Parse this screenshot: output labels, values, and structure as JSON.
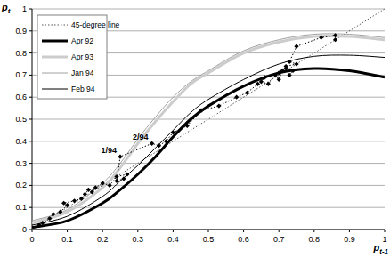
{
  "chart_data": {
    "type": "line",
    "x_label": "pt-1",
    "y_label": "pt",
    "xlim": [
      0,
      1
    ],
    "ylim": [
      0,
      1
    ],
    "xticks": [
      0,
      0.1,
      0.2,
      0.3,
      0.4,
      0.5,
      0.6,
      0.7,
      0.8,
      0.9,
      1
    ],
    "yticks": [
      0,
      0.1,
      0.2,
      0.3,
      0.4,
      0.5,
      0.6,
      0.7,
      0.8,
      0.9,
      1
    ],
    "grid": true,
    "legend": "upper left",
    "series": [
      {
        "name": "45-degree line",
        "type": "line",
        "line_style": "dotted",
        "color": "#555555",
        "x": [
          0,
          1
        ],
        "values": [
          0,
          1
        ]
      },
      {
        "name": "Apr 92",
        "type": "line",
        "line_style": "thick",
        "color": "#000000",
        "x": [
          0,
          0.1,
          0.2,
          0.25,
          0.3,
          0.35,
          0.4,
          0.45,
          0.5,
          0.6,
          0.7,
          0.8,
          0.9,
          1
        ],
        "values": [
          0.01,
          0.04,
          0.12,
          0.18,
          0.25,
          0.33,
          0.42,
          0.5,
          0.56,
          0.65,
          0.71,
          0.73,
          0.72,
          0.69
        ]
      },
      {
        "name": "Apr 93",
        "type": "line",
        "line_style": "thick",
        "color": "#cccccc",
        "x": [
          0,
          0.1,
          0.2,
          0.25,
          0.3,
          0.35,
          0.4,
          0.45,
          0.5,
          0.6,
          0.7,
          0.8,
          0.9,
          1
        ],
        "values": [
          0.03,
          0.08,
          0.19,
          0.28,
          0.39,
          0.49,
          0.58,
          0.66,
          0.71,
          0.8,
          0.85,
          0.875,
          0.875,
          0.86
        ]
      },
      {
        "name": "Jan 94",
        "type": "line",
        "line_style": "solid",
        "color": "#a0a0a0",
        "x": [
          0,
          0.1,
          0.2,
          0.25,
          0.3,
          0.35,
          0.4,
          0.45,
          0.5,
          0.6,
          0.7,
          0.8,
          0.9,
          1
        ],
        "values": [
          0.04,
          0.09,
          0.21,
          0.3,
          0.41,
          0.51,
          0.6,
          0.67,
          0.72,
          0.81,
          0.86,
          0.885,
          0.885,
          0.87
        ]
      },
      {
        "name": "Feb 94",
        "type": "line",
        "line_style": "solid",
        "color": "#000000",
        "x": [
          0,
          0.1,
          0.2,
          0.25,
          0.3,
          0.35,
          0.4,
          0.45,
          0.5,
          0.6,
          0.7,
          0.8,
          0.9,
          1
        ],
        "values": [
          0.02,
          0.06,
          0.15,
          0.22,
          0.29,
          0.37,
          0.45,
          0.53,
          0.59,
          0.68,
          0.75,
          0.785,
          0.79,
          0.78
        ]
      },
      {
        "type": "scatter",
        "marker": "diamond",
        "line_style": "dotted",
        "color": "#000000",
        "x": [
          0.02,
          0.03,
          0.05,
          0.06,
          0.08,
          0.1,
          0.09,
          0.12,
          0.14,
          0.15,
          0.16,
          0.17,
          0.18,
          0.2,
          0.22,
          0.24,
          0.27,
          0.26,
          0.24,
          0.25,
          0.34,
          0.36,
          0.38,
          0.4,
          0.44,
          0.48,
          0.53,
          0.58,
          0.61,
          0.64,
          0.66,
          0.65,
          0.67,
          0.69,
          0.7,
          0.71,
          0.7,
          0.72,
          0.73,
          0.74,
          0.72,
          0.75,
          0.73,
          0.75,
          0.82,
          0.86,
          0.86
        ],
        "values": [
          0.02,
          0.03,
          0.05,
          0.07,
          0.08,
          0.11,
          0.12,
          0.13,
          0.14,
          0.16,
          0.18,
          0.17,
          0.19,
          0.21,
          0.2,
          0.24,
          0.25,
          0.23,
          0.22,
          0.33,
          0.39,
          0.38,
          0.4,
          0.44,
          0.47,
          0.54,
          0.56,
          0.6,
          0.62,
          0.66,
          0.69,
          0.67,
          0.66,
          0.7,
          0.68,
          0.72,
          0.71,
          0.73,
          0.7,
          0.72,
          0.74,
          0.75,
          0.76,
          0.83,
          0.87,
          0.88,
          0.86
        ],
        "point_labels": [
          null,
          null,
          null,
          null,
          null,
          null,
          null,
          null,
          null,
          null,
          null,
          null,
          null,
          null,
          null,
          null,
          null,
          null,
          null,
          "1/94",
          "2/94",
          null,
          null,
          null,
          null,
          null,
          null,
          null,
          null,
          null,
          null,
          null,
          null,
          null,
          null,
          null,
          null,
          null,
          null,
          null,
          null,
          null,
          null,
          null,
          null,
          null,
          null
        ]
      }
    ]
  }
}
